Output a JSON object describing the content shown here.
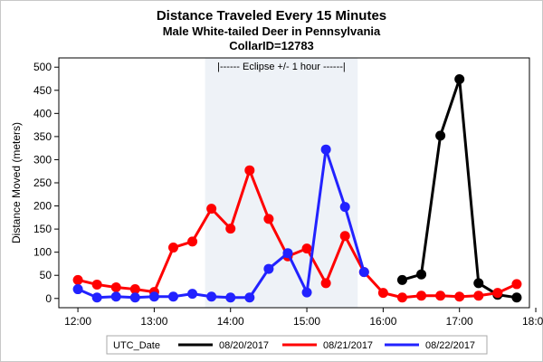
{
  "chart_data": {
    "type": "line",
    "title": "Distance Traveled Every 15 Minutes",
    "subtitle": "Male White-tailed Deer in Pennsylvania",
    "subtitle2": "CollarID=12783",
    "xlabel": "",
    "ylabel": "Distance Moved (meters)",
    "ylim": [
      -20,
      520
    ],
    "xlim_minutes": [
      705,
      1075
    ],
    "y_ticks": [
      0,
      50,
      100,
      150,
      200,
      250,
      300,
      350,
      400,
      450,
      500
    ],
    "x_ticks": [
      "12:00",
      "13:00",
      "14:00",
      "15:00",
      "16:00",
      "17:00",
      "18:00"
    ],
    "grid": false,
    "legend_title": "UTC_Date",
    "legend_position": "bottom",
    "annotation": {
      "text": "|------  Eclipse +/- 1 hour  ------|",
      "x_range": [
        "13:40",
        "15:40"
      ],
      "color": "#eef2f7"
    },
    "series": [
      {
        "name": "08/20/2017",
        "color": "#000000",
        "x": [
          "16:15",
          "16:30",
          "16:45",
          "17:00",
          "17:15",
          "17:30",
          "17:45"
        ],
        "values": [
          40,
          52,
          352,
          474,
          33,
          8,
          2
        ]
      },
      {
        "name": "08/21/2017",
        "color": "#ff0000",
        "x": [
          "12:00",
          "12:15",
          "12:30",
          "12:45",
          "13:00",
          "13:15",
          "13:30",
          "13:45",
          "14:00",
          "14:15",
          "14:30",
          "14:45",
          "15:00",
          "15:15",
          "15:30",
          "15:45",
          "16:00",
          "16:15",
          "16:30",
          "16:45",
          "17:00",
          "17:15",
          "17:30",
          "17:45"
        ],
        "values": [
          40,
          30,
          24,
          20,
          14,
          110,
          123,
          194,
          151,
          277,
          172,
          91,
          108,
          33,
          135,
          57,
          12,
          2,
          6,
          6,
          4,
          6,
          12,
          31
        ]
      },
      {
        "name": "08/22/2017",
        "color": "#2222ff",
        "x": [
          "12:00",
          "12:15",
          "12:30",
          "12:45",
          "13:00",
          "13:15",
          "13:30",
          "13:45",
          "14:00",
          "14:15",
          "14:30",
          "14:45",
          "15:00",
          "15:15",
          "15:30",
          "15:45"
        ],
        "values": [
          20,
          2,
          4,
          2,
          4,
          4,
          10,
          4,
          2,
          2,
          64,
          98,
          13,
          322,
          198,
          57
        ]
      }
    ]
  }
}
